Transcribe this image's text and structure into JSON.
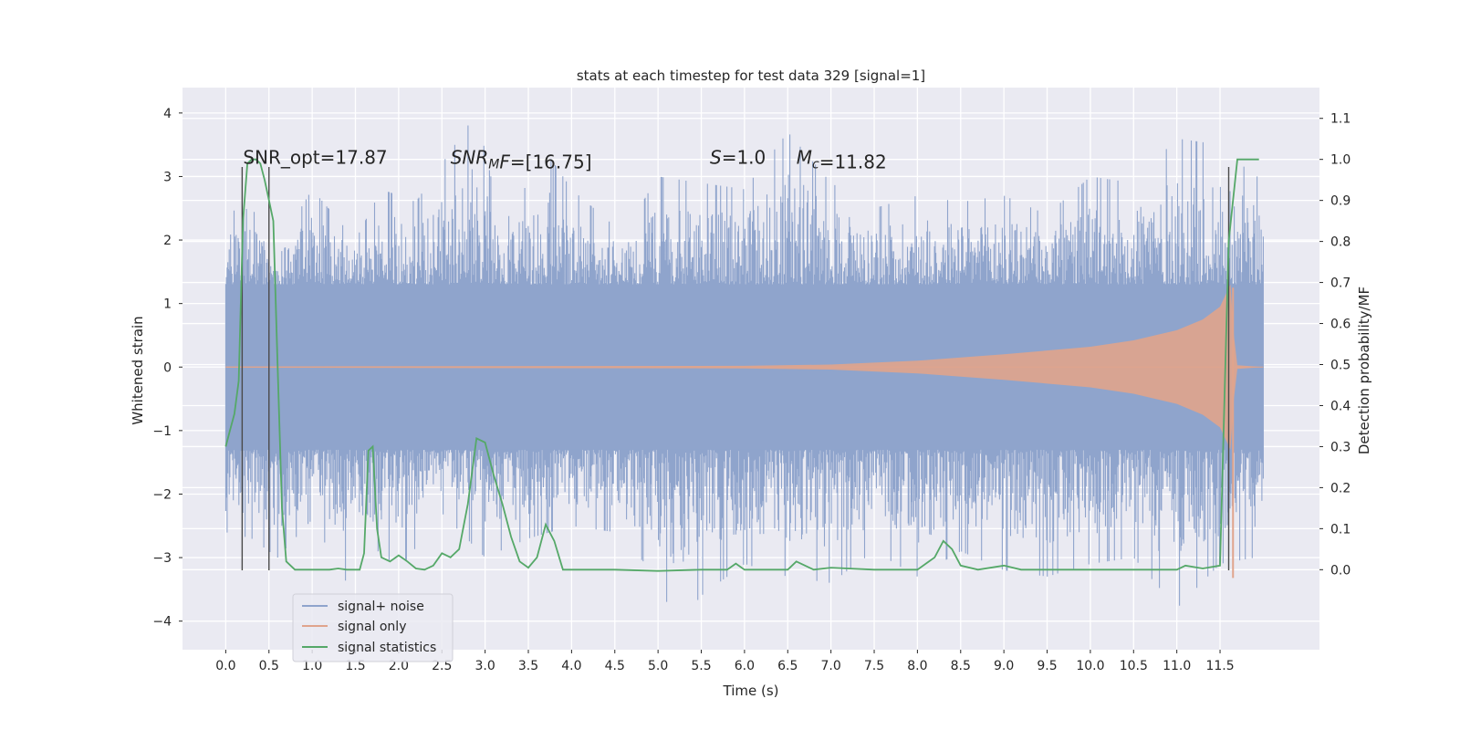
{
  "chart_data": {
    "type": "line",
    "title": "stats at each timestep for test data 329 [signal=1]",
    "xlabel": "Time (s)",
    "ylabel": "Whitened strain",
    "ylabel_right": "Detection probability/MF",
    "xlim": [
      -0.5,
      12.65
    ],
    "ylim": [
      -4.45,
      4.4
    ],
    "ylim_right": [
      -0.195,
      1.175
    ],
    "xticks": [
      0.0,
      0.5,
      1.0,
      1.5,
      2.0,
      2.5,
      3.0,
      3.5,
      4.0,
      4.5,
      5.0,
      5.5,
      6.0,
      6.5,
      7.0,
      7.5,
      8.0,
      8.5,
      9.0,
      9.5,
      10.0,
      10.5,
      11.0,
      11.5
    ],
    "xtick_labels": [
      "0.0",
      "0.5",
      "1.0",
      "1.5",
      "2.0",
      "2.5",
      "3.0",
      "3.5",
      "4.0",
      "4.5",
      "5.0",
      "5.5",
      "6.0",
      "6.5",
      "7.0",
      "7.5",
      "8.0",
      "8.5",
      "9.0",
      "9.5",
      "10.0",
      "10.5",
      "11.0",
      "11.5"
    ],
    "yticks": [
      -4,
      -3,
      -2,
      -1,
      0,
      1,
      2,
      3,
      4
    ],
    "ytick_labels": [
      "−4",
      "−3",
      "−2",
      "−1",
      "0",
      "1",
      "2",
      "3",
      "4"
    ],
    "yticks_right": [
      0.0,
      0.1,
      0.2,
      0.3,
      0.4,
      0.5,
      0.6,
      0.7,
      0.8,
      0.9,
      1.0,
      1.1
    ],
    "ytick_labels_right": [
      "0.0",
      "0.1",
      "0.2",
      "0.3",
      "0.4",
      "0.5",
      "0.6",
      "0.7",
      "0.8",
      "0.9",
      "1.0",
      "1.1"
    ],
    "grid": true,
    "legend_position": "lower-left",
    "annotations": [
      {
        "id": "snr-opt",
        "x": 0.2,
        "y": 3.2,
        "parts": [
          {
            "t": "SNR_opt=17.87"
          }
        ]
      },
      {
        "id": "snr-mf",
        "x": 2.6,
        "y": 3.2,
        "parts": [
          {
            "t": "SNR",
            "it": true
          },
          {
            "t": "M",
            "it": true,
            "sub": true
          },
          {
            "t": "F",
            "it": true
          },
          {
            "t": "=[16.75]"
          }
        ]
      },
      {
        "id": "s-value",
        "x": 5.6,
        "y": 3.2,
        "parts": [
          {
            "t": "S",
            "it": true
          },
          {
            "t": "=1.0"
          }
        ]
      },
      {
        "id": "mc-value",
        "x": 6.6,
        "y": 3.2,
        "parts": [
          {
            "t": "M",
            "it": true
          },
          {
            "t": "c",
            "it": true,
            "sub": true
          },
          {
            "t": "=11.82"
          }
        ]
      }
    ],
    "series": [
      {
        "name": "signal+ noise",
        "color": "#8fa4cc",
        "t_range": [
          0.0,
          12.0
        ],
        "envelope_core": 1.3,
        "peak_upper": [
          [
            0.02,
            2.45
          ],
          [
            0.3,
            2.5
          ],
          [
            0.6,
            1.9
          ],
          [
            1.0,
            2.8
          ],
          [
            1.5,
            2.0
          ],
          [
            1.8,
            2.8
          ],
          [
            2.2,
            2.6
          ],
          [
            2.9,
            4.0
          ],
          [
            3.2,
            2.2
          ],
          [
            3.7,
            3.4
          ],
          [
            4.0,
            2.8
          ],
          [
            4.6,
            2.1
          ],
          [
            5.0,
            3.0
          ],
          [
            5.5,
            2.9
          ],
          [
            6.0,
            2.8
          ],
          [
            6.5,
            3.7
          ],
          [
            7.0,
            2.9
          ],
          [
            7.5,
            2.5
          ],
          [
            8.0,
            2.7
          ],
          [
            8.5,
            2.6
          ],
          [
            9.0,
            2.7
          ],
          [
            9.5,
            2.4
          ],
          [
            10.0,
            3.0
          ],
          [
            10.5,
            2.9
          ],
          [
            11.0,
            3.6
          ],
          [
            11.5,
            3.5
          ],
          [
            11.9,
            3.0
          ]
        ],
        "peak_lower": [
          [
            0.0,
            -2.6
          ],
          [
            0.3,
            -2.7
          ],
          [
            0.6,
            -3.0
          ],
          [
            1.0,
            -2.4
          ],
          [
            1.4,
            -3.4
          ],
          [
            1.6,
            -2.7
          ],
          [
            2.0,
            -3.2
          ],
          [
            2.5,
            -2.3
          ],
          [
            3.0,
            -3.0
          ],
          [
            3.5,
            -2.7
          ],
          [
            4.0,
            -2.5
          ],
          [
            4.5,
            -2.6
          ],
          [
            5.0,
            -3.3
          ],
          [
            5.2,
            -4.1
          ],
          [
            5.5,
            -3.6
          ],
          [
            6.0,
            -3.1
          ],
          [
            6.5,
            -3.3
          ],
          [
            7.0,
            -3.4
          ],
          [
            7.5,
            -2.9
          ],
          [
            8.0,
            -3.3
          ],
          [
            8.5,
            -2.9
          ],
          [
            9.0,
            -3.2
          ],
          [
            9.5,
            -3.3
          ],
          [
            10.0,
            -3.1
          ],
          [
            10.5,
            -3.0
          ],
          [
            11.0,
            -3.8
          ],
          [
            11.5,
            -3.1
          ],
          [
            11.9,
            -3.0
          ]
        ]
      },
      {
        "name": "signal only",
        "color": "#e0a48c",
        "envelope": [
          [
            0.0,
            0.01
          ],
          [
            6.0,
            0.02
          ],
          [
            7.0,
            0.04
          ],
          [
            8.0,
            0.1
          ],
          [
            9.0,
            0.2
          ],
          [
            10.0,
            0.32
          ],
          [
            10.5,
            0.42
          ],
          [
            11.0,
            0.58
          ],
          [
            11.3,
            0.75
          ],
          [
            11.5,
            0.95
          ],
          [
            11.62,
            1.3
          ],
          [
            11.66,
            0.5
          ],
          [
            11.7,
            0.03
          ],
          [
            12.0,
            0.0
          ]
        ],
        "spike": {
          "x": 11.65,
          "y_min": -3.32,
          "y_max": 1.25
        }
      },
      {
        "name": "signal statistics",
        "color": "#55a868",
        "axis": "right",
        "points": [
          [
            0.0,
            0.3
          ],
          [
            0.05,
            0.34
          ],
          [
            0.1,
            0.38
          ],
          [
            0.15,
            0.46
          ],
          [
            0.2,
            0.85
          ],
          [
            0.25,
            0.99
          ],
          [
            0.3,
            1.0
          ],
          [
            0.35,
            1.0
          ],
          [
            0.4,
            0.99
          ],
          [
            0.45,
            0.95
          ],
          [
            0.5,
            0.9
          ],
          [
            0.55,
            0.85
          ],
          [
            0.6,
            0.5
          ],
          [
            0.65,
            0.15
          ],
          [
            0.7,
            0.02
          ],
          [
            0.8,
            0.0
          ],
          [
            1.0,
            0.0
          ],
          [
            1.2,
            0.0
          ],
          [
            1.3,
            0.003
          ],
          [
            1.4,
            0.0
          ],
          [
            1.55,
            0.0
          ],
          [
            1.6,
            0.04
          ],
          [
            1.65,
            0.29
          ],
          [
            1.7,
            0.3
          ],
          [
            1.75,
            0.1
          ],
          [
            1.8,
            0.03
          ],
          [
            1.9,
            0.02
          ],
          [
            2.0,
            0.035
          ],
          [
            2.1,
            0.02
          ],
          [
            2.2,
            0.003
          ],
          [
            2.3,
            0.0
          ],
          [
            2.4,
            0.01
          ],
          [
            2.5,
            0.04
          ],
          [
            2.6,
            0.03
          ],
          [
            2.7,
            0.05
          ],
          [
            2.8,
            0.16
          ],
          [
            2.9,
            0.32
          ],
          [
            3.0,
            0.31
          ],
          [
            3.1,
            0.23
          ],
          [
            3.2,
            0.16
          ],
          [
            3.3,
            0.08
          ],
          [
            3.4,
            0.02
          ],
          [
            3.5,
            0.005
          ],
          [
            3.6,
            0.03
          ],
          [
            3.7,
            0.11
          ],
          [
            3.8,
            0.07
          ],
          [
            3.9,
            0.0
          ],
          [
            4.0,
            0.0
          ],
          [
            4.5,
            0.0
          ],
          [
            5.0,
            -0.003
          ],
          [
            5.5,
            0.0
          ],
          [
            5.8,
            0.0
          ],
          [
            5.9,
            0.015
          ],
          [
            6.0,
            0.0
          ],
          [
            6.5,
            0.0
          ],
          [
            6.6,
            0.02
          ],
          [
            6.8,
            0.0
          ],
          [
            7.0,
            0.005
          ],
          [
            7.5,
            0.0
          ],
          [
            8.0,
            0.0
          ],
          [
            8.2,
            0.03
          ],
          [
            8.3,
            0.07
          ],
          [
            8.4,
            0.05
          ],
          [
            8.5,
            0.01
          ],
          [
            8.7,
            0.0
          ],
          [
            9.0,
            0.01
          ],
          [
            9.2,
            0.0
          ],
          [
            9.5,
            0.0
          ],
          [
            10.0,
            0.0
          ],
          [
            10.5,
            0.0
          ],
          [
            11.0,
            0.0
          ],
          [
            11.1,
            0.01
          ],
          [
            11.3,
            0.003
          ],
          [
            11.5,
            0.01
          ],
          [
            11.6,
            0.8
          ],
          [
            11.7,
            1.0
          ],
          [
            11.95,
            1.0
          ]
        ]
      }
    ],
    "vertical_lines": [
      {
        "x": 0.19,
        "y_min": -3.2,
        "y_max": 3.15
      },
      {
        "x": 0.5,
        "y_min": -3.2,
        "y_max": 3.15
      },
      {
        "x": 11.6,
        "y_min": -3.2,
        "y_max": 3.15
      }
    ],
    "legend_entries": [
      "signal+ noise",
      "signal only",
      "signal statistics"
    ]
  }
}
